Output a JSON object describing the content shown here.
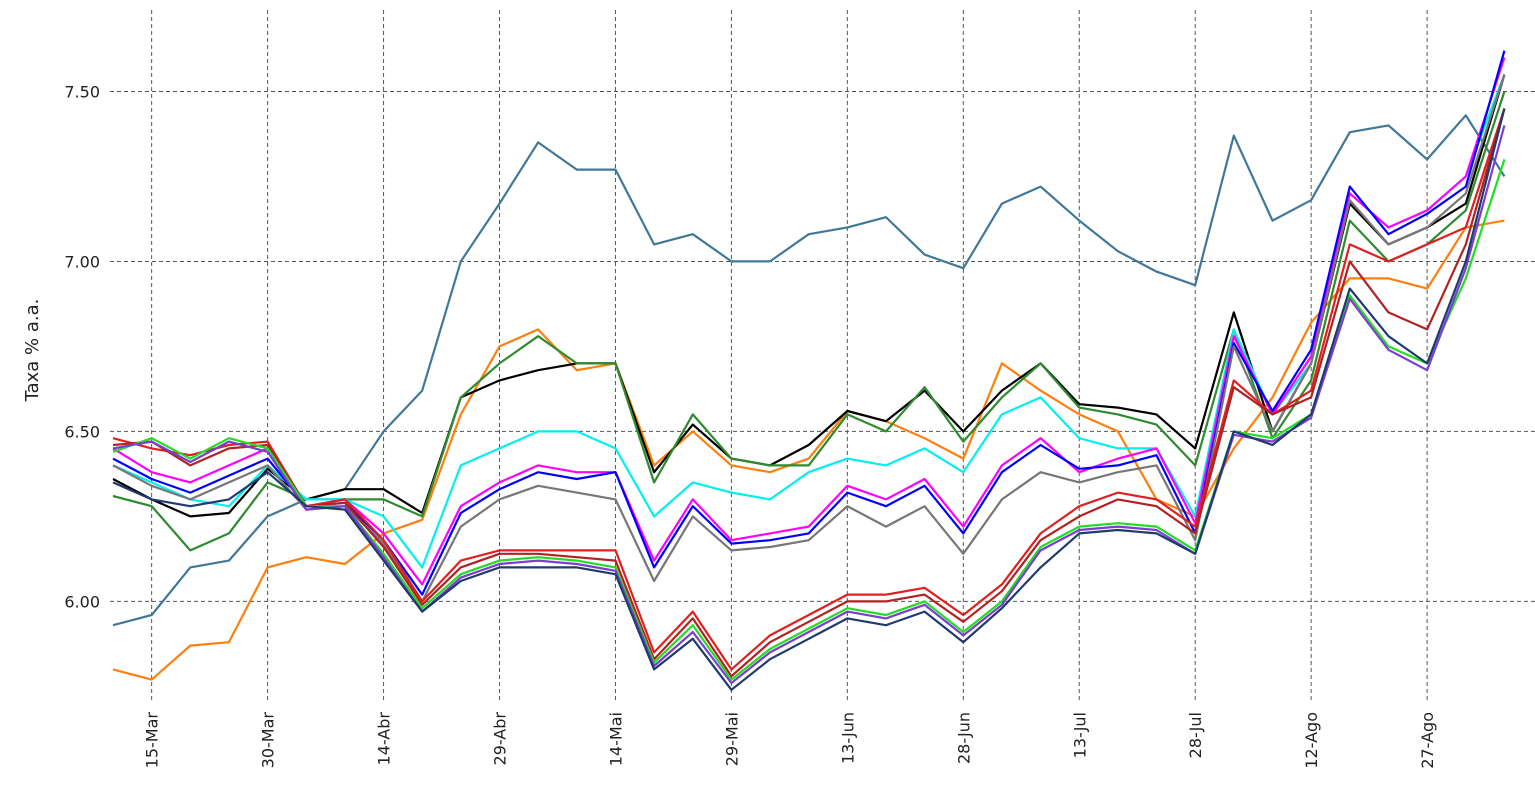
{
  "chart_data": {
    "type": "line",
    "y_label": "Taxa % a.a.",
    "categories": [
      null,
      "15-Mar",
      null,
      null,
      "30-Mar",
      null,
      null,
      "14-Abr",
      null,
      null,
      "29-Abr",
      null,
      null,
      "14-Mai",
      null,
      null,
      "29-Mai",
      null,
      null,
      "13-Jun",
      null,
      null,
      "28-Jun",
      null,
      null,
      "13-Jul",
      null,
      null,
      "28-Jul",
      null,
      null,
      "12-Ago",
      null,
      null,
      "27-Ago",
      null,
      null
    ],
    "ylim": [
      5.71,
      7.769
    ],
    "yticks": [
      {
        "value": 6.0,
        "label": "6.00"
      },
      {
        "value": 6.5,
        "label": "6.50"
      },
      {
        "value": 7.0,
        "label": "7.00"
      },
      {
        "value": 7.5,
        "label": "7.50"
      }
    ],
    "grid": true,
    "series": [
      {
        "color": "#41789a",
        "values": [
          5.93,
          5.96,
          6.1,
          6.12,
          6.25,
          6.3,
          6.33,
          6.5,
          6.62,
          7.0,
          7.17,
          7.35,
          7.27,
          7.27,
          7.05,
          7.08,
          7.0,
          7.0,
          7.08,
          7.1,
          7.13,
          7.02,
          6.98,
          7.17,
          7.22,
          7.12,
          7.03,
          6.97,
          6.93,
          7.37,
          7.12,
          7.18,
          7.38,
          7.4,
          7.3,
          7.43,
          7.25
        ]
      },
      {
        "color": "#ff7f0e",
        "values": [
          5.8,
          5.77,
          5.87,
          5.88,
          6.1,
          6.13,
          6.11,
          6.2,
          6.24,
          6.55,
          6.75,
          6.8,
          6.68,
          6.7,
          6.4,
          6.5,
          6.4,
          6.38,
          6.42,
          6.56,
          6.53,
          6.48,
          6.42,
          6.7,
          6.62,
          6.55,
          6.5,
          6.3,
          6.25,
          6.45,
          6.6,
          6.82,
          6.95,
          6.95,
          6.92,
          7.1,
          7.12
        ]
      },
      {
        "color": "#000000",
        "values": [
          6.36,
          6.3,
          6.25,
          6.26,
          6.39,
          6.3,
          6.33,
          6.33,
          6.26,
          6.6,
          6.65,
          6.68,
          6.7,
          6.7,
          6.38,
          6.52,
          6.42,
          6.4,
          6.46,
          6.56,
          6.53,
          6.62,
          6.5,
          6.62,
          6.7,
          6.58,
          6.57,
          6.55,
          6.45,
          6.85,
          6.5,
          6.7,
          7.17,
          7.05,
          7.1,
          7.17,
          7.55
        ]
      },
      {
        "color": "#2e8b2e",
        "values": [
          6.31,
          6.28,
          6.15,
          6.2,
          6.35,
          6.3,
          6.3,
          6.3,
          6.25,
          6.6,
          6.7,
          6.78,
          6.7,
          6.7,
          6.35,
          6.55,
          6.42,
          6.4,
          6.4,
          6.55,
          6.5,
          6.63,
          6.47,
          6.6,
          6.7,
          6.57,
          6.55,
          6.52,
          6.4,
          6.8,
          6.48,
          6.65,
          7.12,
          7.0,
          7.05,
          7.15,
          7.5
        ]
      },
      {
        "color": "#00f0f0",
        "values": [
          6.4,
          6.35,
          6.3,
          6.28,
          6.4,
          6.3,
          6.3,
          6.25,
          6.1,
          6.4,
          6.45,
          6.5,
          6.5,
          6.45,
          6.25,
          6.35,
          6.32,
          6.3,
          6.38,
          6.42,
          6.4,
          6.45,
          6.38,
          6.55,
          6.6,
          6.48,
          6.45,
          6.45,
          6.25,
          6.8,
          6.55,
          6.7,
          7.2,
          7.1,
          7.15,
          7.25,
          7.55
        ]
      },
      {
        "color": "#ff00ff",
        "values": [
          6.45,
          6.38,
          6.35,
          6.4,
          6.45,
          6.28,
          6.3,
          6.2,
          6.05,
          6.28,
          6.35,
          6.4,
          6.38,
          6.38,
          6.12,
          6.3,
          6.18,
          6.2,
          6.22,
          6.34,
          6.3,
          6.36,
          6.22,
          6.4,
          6.48,
          6.38,
          6.42,
          6.45,
          6.23,
          6.78,
          6.55,
          6.72,
          7.2,
          7.1,
          7.15,
          7.25,
          7.6
        ]
      },
      {
        "color": "#0000ff",
        "values": [
          6.42,
          6.36,
          6.32,
          6.37,
          6.42,
          6.28,
          6.29,
          6.18,
          6.02,
          6.26,
          6.33,
          6.38,
          6.36,
          6.38,
          6.1,
          6.28,
          6.17,
          6.18,
          6.2,
          6.32,
          6.28,
          6.34,
          6.2,
          6.38,
          6.46,
          6.39,
          6.4,
          6.43,
          6.2,
          6.76,
          6.56,
          6.74,
          7.22,
          7.08,
          7.14,
          7.22,
          7.62
        ]
      },
      {
        "color": "#777777",
        "values": [
          6.4,
          6.34,
          6.3,
          6.35,
          6.4,
          6.27,
          6.28,
          6.17,
          6.0,
          6.22,
          6.3,
          6.34,
          6.32,
          6.3,
          6.06,
          6.25,
          6.15,
          6.16,
          6.18,
          6.28,
          6.22,
          6.28,
          6.14,
          6.3,
          6.38,
          6.35,
          6.38,
          6.4,
          6.18,
          6.75,
          6.5,
          6.7,
          7.18,
          7.05,
          7.1,
          7.2,
          7.55
        ]
      },
      {
        "color": "#e02020",
        "values": [
          6.48,
          6.45,
          6.43,
          6.46,
          6.47,
          6.28,
          6.3,
          6.18,
          6.0,
          6.12,
          6.15,
          6.15,
          6.15,
          6.15,
          5.85,
          5.97,
          5.8,
          5.9,
          5.96,
          6.02,
          6.02,
          6.04,
          5.96,
          6.05,
          6.2,
          6.28,
          6.32,
          6.3,
          6.22,
          6.65,
          6.55,
          6.62,
          7.05,
          7.0,
          7.05,
          7.1,
          7.45
        ]
      },
      {
        "color": "#b22222",
        "values": [
          6.46,
          6.47,
          6.4,
          6.45,
          6.46,
          6.28,
          6.29,
          6.16,
          5.99,
          6.1,
          6.14,
          6.14,
          6.13,
          6.12,
          5.83,
          5.95,
          5.78,
          5.88,
          5.94,
          6.0,
          6.0,
          6.02,
          5.94,
          6.03,
          6.18,
          6.25,
          6.3,
          6.28,
          6.2,
          6.63,
          6.55,
          6.6,
          7.0,
          6.85,
          6.8,
          7.05,
          7.45
        ]
      },
      {
        "color": "#22dd22",
        "values": [
          6.44,
          6.48,
          6.42,
          6.48,
          6.45,
          6.28,
          6.28,
          6.14,
          5.98,
          6.08,
          6.12,
          6.13,
          6.12,
          6.1,
          5.82,
          5.93,
          5.77,
          5.86,
          5.92,
          5.98,
          5.96,
          6.0,
          5.91,
          6.0,
          6.16,
          6.22,
          6.23,
          6.22,
          6.15,
          6.5,
          6.48,
          6.55,
          6.9,
          6.75,
          6.7,
          6.95,
          7.3
        ]
      },
      {
        "color": "#7a3fd0",
        "values": [
          6.45,
          6.47,
          6.41,
          6.47,
          6.44,
          6.27,
          6.28,
          6.13,
          5.97,
          6.07,
          6.11,
          6.12,
          6.11,
          6.09,
          5.81,
          5.91,
          5.76,
          5.85,
          5.91,
          5.97,
          5.95,
          5.99,
          5.9,
          5.99,
          6.15,
          6.21,
          6.22,
          6.21,
          6.14,
          6.49,
          6.47,
          6.54,
          6.89,
          6.74,
          6.68,
          6.98,
          7.4
        ]
      },
      {
        "color": "#1f3a6e",
        "values": [
          6.35,
          6.3,
          6.28,
          6.3,
          6.38,
          6.28,
          6.27,
          6.12,
          5.97,
          6.06,
          6.1,
          6.1,
          6.1,
          6.08,
          5.8,
          5.89,
          5.74,
          5.83,
          5.89,
          5.95,
          5.93,
          5.97,
          5.88,
          5.98,
          6.1,
          6.2,
          6.21,
          6.2,
          6.14,
          6.5,
          6.46,
          6.55,
          6.92,
          6.78,
          6.7,
          7.0,
          7.45
        ]
      }
    ]
  }
}
